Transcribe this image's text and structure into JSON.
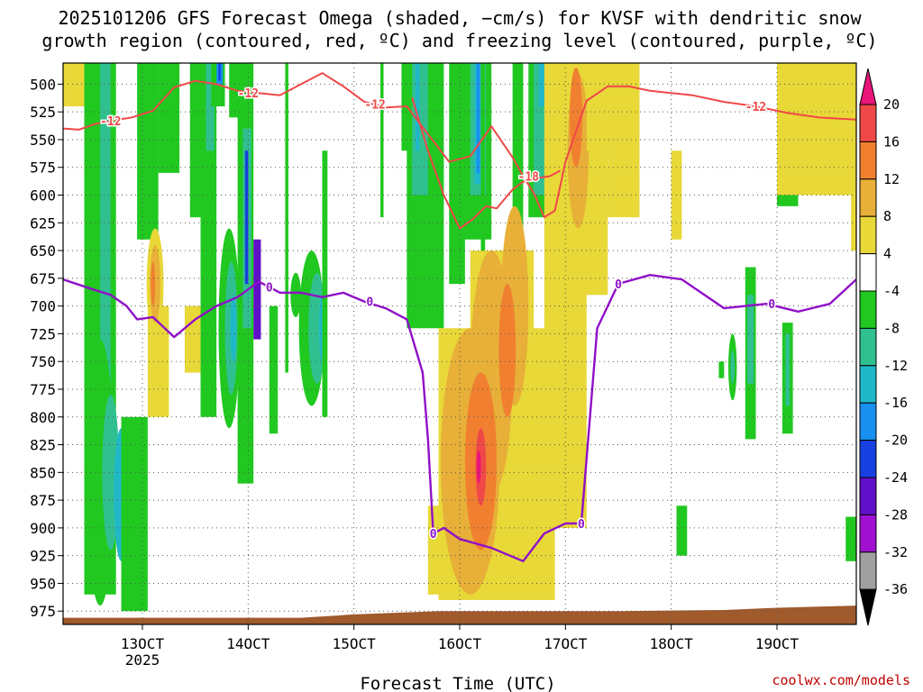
{
  "chart_data": {
    "type": "heatmap",
    "title_line1": "2025101206 GFS Forecast Omega (shaded, −cm/s) for KVSF with dendritic snow",
    "title_line2": "growth region (contoured, red, ºC) and freezing level (contoured, purple, ºC)",
    "xlabel": "Forecast Time (UTC)",
    "credit": "coolwx.com/models",
    "x_ticks": [
      {
        "day": 13,
        "label": "13OCT"
      },
      {
        "day": 14,
        "label": "14OCT"
      },
      {
        "day": 15,
        "label": "15OCT"
      },
      {
        "day": 16,
        "label": "16OCT"
      },
      {
        "day": 17,
        "label": "17OCT"
      },
      {
        "day": 18,
        "label": "18OCT"
      },
      {
        "day": 19,
        "label": "19OCT"
      }
    ],
    "x_year_label": "2025",
    "xlim": [
      12.25,
      19.75
    ],
    "ylim": [
      481,
      987
    ],
    "y_ticks": [
      500,
      525,
      550,
      575,
      600,
      625,
      650,
      675,
      700,
      725,
      750,
      775,
      800,
      825,
      850,
      875,
      900,
      925,
      950,
      975
    ],
    "colorbar": {
      "labels": [
        "20",
        "16",
        "12",
        "8",
        "4",
        "-4",
        "-8",
        "-12",
        "-16",
        "-20",
        "-24",
        "-28",
        "-32",
        "-36"
      ],
      "colors": [
        "#e8157a",
        "#f04848",
        "#f08030",
        "#e8b038",
        "#e8d838",
        "#ffffff",
        "#20c820",
        "#30c090",
        "#20b8c8",
        "#1890f0",
        "#1840e0",
        "#6010c8",
        "#a010d0",
        "#a0a0a0",
        "#000000"
      ]
    },
    "series": [
      {
        "name": "Dendritic growth zone (-12)",
        "color": "#f04848",
        "contour_label": "-12",
        "x": [
          12.25,
          12.4,
          12.55,
          12.7,
          12.9,
          13.1,
          13.3,
          13.5,
          13.7,
          13.9,
          14.1,
          14.3,
          14.5,
          14.7,
          14.9,
          15.1,
          15.3,
          15.5,
          15.7,
          15.9,
          16.1,
          16.3,
          16.5,
          16.6,
          16.7,
          16.8,
          16.9,
          17.0,
          17.2,
          17.4,
          17.6,
          17.8,
          18.0,
          18.2,
          18.5,
          18.8,
          19.1,
          19.4,
          19.75
        ],
        "y": [
          540,
          541,
          536,
          533,
          530,
          524,
          503,
          497,
          500,
          506,
          508,
          510,
          500,
          490,
          502,
          516,
          521,
          520,
          545,
          570,
          565,
          538,
          566,
          583,
          598,
          620,
          614,
          570,
          515,
          502,
          502,
          506,
          508,
          510,
          516,
          520,
          526,
          530,
          532
        ]
      },
      {
        "name": "Dendritic growth zone (-18)",
        "color": "#f04848",
        "contour_label": "-18",
        "x": [
          15.55,
          15.7,
          15.85,
          16.0,
          16.12,
          16.25,
          16.35,
          16.5,
          16.6,
          16.7,
          16.85,
          16.95
        ],
        "y": [
          512,
          560,
          600,
          630,
          622,
          610,
          612,
          595,
          588,
          585,
          583,
          578
        ]
      },
      {
        "name": "Freezing level (0)",
        "color": "#9010c8",
        "contour_label": "0",
        "x": [
          12.25,
          12.5,
          12.7,
          12.85,
          12.95,
          13.1,
          13.3,
          13.5,
          13.7,
          13.9,
          14.1,
          14.3,
          14.5,
          14.7,
          14.9,
          15.1,
          15.3,
          15.5,
          15.65,
          15.7,
          15.75,
          15.85,
          16.0,
          16.3,
          16.6,
          16.8,
          17.0,
          17.15,
          17.3,
          17.5,
          17.8,
          18.1,
          18.5,
          18.9,
          19.2,
          19.5,
          19.75
        ],
        "y": [
          676,
          684,
          690,
          700,
          712,
          710,
          728,
          712,
          700,
          692,
          678,
          688,
          688,
          692,
          688,
          696,
          702,
          712,
          760,
          820,
          905,
          900,
          910,
          918,
          930,
          905,
          896,
          896,
          720,
          680,
          672,
          676,
          702,
          698,
          705,
          698,
          676
        ]
      }
    ],
    "terrain_color": "#a05a2c"
  }
}
